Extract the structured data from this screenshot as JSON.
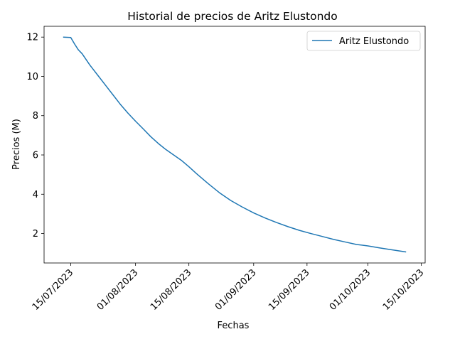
{
  "chart_data": {
    "type": "line",
    "title": "Historial de precios de Aritz Elustondo",
    "xlabel": "Fechas",
    "ylabel": "Precios (M)",
    "x_ticks": [
      "15/07/2023",
      "01/08/2023",
      "15/08/2023",
      "01/09/2023",
      "15/09/2023",
      "01/10/2023",
      "15/10/2023"
    ],
    "y_ticks": [
      "2",
      "4",
      "6",
      "8",
      "10",
      "12"
    ],
    "xlim": [
      "2023-07-08",
      "2023-10-16"
    ],
    "ylim": [
      0.5,
      12.55
    ],
    "grid": false,
    "legend_position": "upper right",
    "colors": {
      "series": "#1f77b4"
    },
    "series": [
      {
        "name": "Aritz Elustondo",
        "x": [
          "2023-07-13",
          "2023-07-15",
          "2023-07-16",
          "2023-07-17",
          "2023-07-18",
          "2023-07-20",
          "2023-07-22",
          "2023-07-24",
          "2023-07-26",
          "2023-07-28",
          "2023-07-30",
          "2023-08-01",
          "2023-08-03",
          "2023-08-05",
          "2023-08-07",
          "2023-08-09",
          "2023-08-11",
          "2023-08-13",
          "2023-08-15",
          "2023-08-17",
          "2023-08-20",
          "2023-08-23",
          "2023-08-26",
          "2023-08-29",
          "2023-09-01",
          "2023-09-04",
          "2023-09-07",
          "2023-09-10",
          "2023-09-13",
          "2023-09-16",
          "2023-09-19",
          "2023-09-22",
          "2023-09-25",
          "2023-09-28",
          "2023-10-01",
          "2023-10-04",
          "2023-10-07",
          "2023-10-11"
        ],
        "values": [
          12.0,
          11.98,
          11.65,
          11.35,
          11.15,
          10.58,
          10.08,
          9.58,
          9.08,
          8.58,
          8.13,
          7.72,
          7.33,
          6.93,
          6.58,
          6.27,
          6.0,
          5.73,
          5.4,
          5.05,
          4.55,
          4.08,
          3.68,
          3.35,
          3.05,
          2.79,
          2.56,
          2.35,
          2.16,
          2.0,
          1.85,
          1.7,
          1.57,
          1.44,
          1.37,
          1.27,
          1.18,
          1.06
        ]
      }
    ]
  }
}
